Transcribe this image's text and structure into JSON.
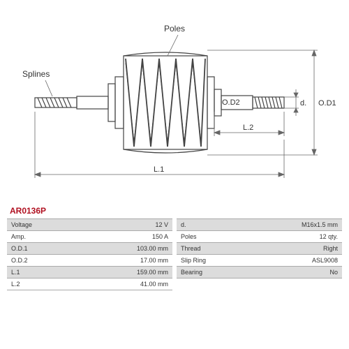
{
  "partNumber": "AR0136P",
  "diagram": {
    "labels": {
      "splines": "Splines",
      "poles": "Poles",
      "od1": "O.D1",
      "od2": "O.D2",
      "d": "d.",
      "l1": "L.1",
      "l2": "L.2"
    },
    "stroke": "#444444",
    "dimStroke": "#666666"
  },
  "specs": {
    "left": [
      {
        "label": "Voltage",
        "value": "12 V"
      },
      {
        "label": "Amp.",
        "value": "150 A"
      },
      {
        "label": "O.D.1",
        "value": "103.00 mm"
      },
      {
        "label": "O.D.2",
        "value": "17.00 mm"
      },
      {
        "label": "L.1",
        "value": "159.00 mm"
      },
      {
        "label": "L.2",
        "value": "41.00 mm"
      }
    ],
    "right": [
      {
        "label": "d.",
        "value": "M16x1.5 mm"
      },
      {
        "label": "Poles",
        "value": "12 qty."
      },
      {
        "label": "Thread",
        "value": "Right"
      },
      {
        "label": "Slip Ring",
        "value": "ASL9008"
      },
      {
        "label": "Bearing",
        "value": "No"
      }
    ]
  }
}
